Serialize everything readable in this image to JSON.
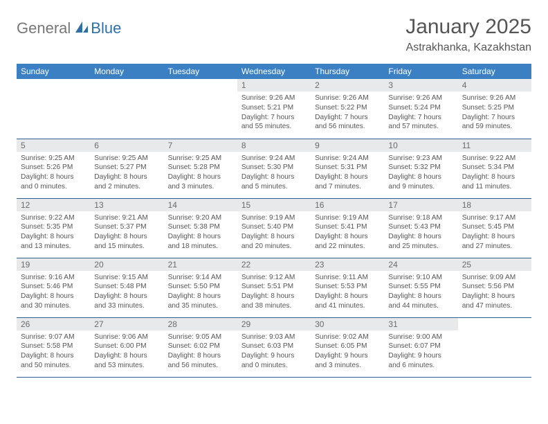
{
  "brand": {
    "part1": "General",
    "part2": "Blue"
  },
  "title": {
    "month": "January 2025",
    "location": "Astrakhanka, Kazakhstan"
  },
  "colors": {
    "header_bg": "#3a80c3",
    "header_text": "#ffffff",
    "daynum_bg": "#e7e9eb",
    "row_divider": "#2c5f90",
    "body_text": "#555555",
    "logo_gray": "#777777",
    "logo_blue": "#2f6fa8",
    "page_bg": "#ffffff"
  },
  "typography": {
    "base_font": "Arial",
    "title_size_pt": 23,
    "location_size_pt": 12,
    "cell_size_pt": 8
  },
  "weekdays": [
    "Sunday",
    "Monday",
    "Tuesday",
    "Wednesday",
    "Thursday",
    "Friday",
    "Saturday"
  ],
  "calendar": {
    "type": "table",
    "columns": 7,
    "rows": 5,
    "weeks": [
      [
        {
          "blank": true
        },
        {
          "blank": true
        },
        {
          "blank": true
        },
        {
          "num": "1",
          "sunrise": "Sunrise: 9:26 AM",
          "sunset": "Sunset: 5:21 PM",
          "day1": "Daylight: 7 hours",
          "day2": "and 55 minutes."
        },
        {
          "num": "2",
          "sunrise": "Sunrise: 9:26 AM",
          "sunset": "Sunset: 5:22 PM",
          "day1": "Daylight: 7 hours",
          "day2": "and 56 minutes."
        },
        {
          "num": "3",
          "sunrise": "Sunrise: 9:26 AM",
          "sunset": "Sunset: 5:24 PM",
          "day1": "Daylight: 7 hours",
          "day2": "and 57 minutes."
        },
        {
          "num": "4",
          "sunrise": "Sunrise: 9:26 AM",
          "sunset": "Sunset: 5:25 PM",
          "day1": "Daylight: 7 hours",
          "day2": "and 59 minutes."
        }
      ],
      [
        {
          "num": "5",
          "sunrise": "Sunrise: 9:25 AM",
          "sunset": "Sunset: 5:26 PM",
          "day1": "Daylight: 8 hours",
          "day2": "and 0 minutes."
        },
        {
          "num": "6",
          "sunrise": "Sunrise: 9:25 AM",
          "sunset": "Sunset: 5:27 PM",
          "day1": "Daylight: 8 hours",
          "day2": "and 2 minutes."
        },
        {
          "num": "7",
          "sunrise": "Sunrise: 9:25 AM",
          "sunset": "Sunset: 5:28 PM",
          "day1": "Daylight: 8 hours",
          "day2": "and 3 minutes."
        },
        {
          "num": "8",
          "sunrise": "Sunrise: 9:24 AM",
          "sunset": "Sunset: 5:30 PM",
          "day1": "Daylight: 8 hours",
          "day2": "and 5 minutes."
        },
        {
          "num": "9",
          "sunrise": "Sunrise: 9:24 AM",
          "sunset": "Sunset: 5:31 PM",
          "day1": "Daylight: 8 hours",
          "day2": "and 7 minutes."
        },
        {
          "num": "10",
          "sunrise": "Sunrise: 9:23 AM",
          "sunset": "Sunset: 5:32 PM",
          "day1": "Daylight: 8 hours",
          "day2": "and 9 minutes."
        },
        {
          "num": "11",
          "sunrise": "Sunrise: 9:22 AM",
          "sunset": "Sunset: 5:34 PM",
          "day1": "Daylight: 8 hours",
          "day2": "and 11 minutes."
        }
      ],
      [
        {
          "num": "12",
          "sunrise": "Sunrise: 9:22 AM",
          "sunset": "Sunset: 5:35 PM",
          "day1": "Daylight: 8 hours",
          "day2": "and 13 minutes."
        },
        {
          "num": "13",
          "sunrise": "Sunrise: 9:21 AM",
          "sunset": "Sunset: 5:37 PM",
          "day1": "Daylight: 8 hours",
          "day2": "and 15 minutes."
        },
        {
          "num": "14",
          "sunrise": "Sunrise: 9:20 AM",
          "sunset": "Sunset: 5:38 PM",
          "day1": "Daylight: 8 hours",
          "day2": "and 18 minutes."
        },
        {
          "num": "15",
          "sunrise": "Sunrise: 9:19 AM",
          "sunset": "Sunset: 5:40 PM",
          "day1": "Daylight: 8 hours",
          "day2": "and 20 minutes."
        },
        {
          "num": "16",
          "sunrise": "Sunrise: 9:19 AM",
          "sunset": "Sunset: 5:41 PM",
          "day1": "Daylight: 8 hours",
          "day2": "and 22 minutes."
        },
        {
          "num": "17",
          "sunrise": "Sunrise: 9:18 AM",
          "sunset": "Sunset: 5:43 PM",
          "day1": "Daylight: 8 hours",
          "day2": "and 25 minutes."
        },
        {
          "num": "18",
          "sunrise": "Sunrise: 9:17 AM",
          "sunset": "Sunset: 5:45 PM",
          "day1": "Daylight: 8 hours",
          "day2": "and 27 minutes."
        }
      ],
      [
        {
          "num": "19",
          "sunrise": "Sunrise: 9:16 AM",
          "sunset": "Sunset: 5:46 PM",
          "day1": "Daylight: 8 hours",
          "day2": "and 30 minutes."
        },
        {
          "num": "20",
          "sunrise": "Sunrise: 9:15 AM",
          "sunset": "Sunset: 5:48 PM",
          "day1": "Daylight: 8 hours",
          "day2": "and 33 minutes."
        },
        {
          "num": "21",
          "sunrise": "Sunrise: 9:14 AM",
          "sunset": "Sunset: 5:50 PM",
          "day1": "Daylight: 8 hours",
          "day2": "and 35 minutes."
        },
        {
          "num": "22",
          "sunrise": "Sunrise: 9:12 AM",
          "sunset": "Sunset: 5:51 PM",
          "day1": "Daylight: 8 hours",
          "day2": "and 38 minutes."
        },
        {
          "num": "23",
          "sunrise": "Sunrise: 9:11 AM",
          "sunset": "Sunset: 5:53 PM",
          "day1": "Daylight: 8 hours",
          "day2": "and 41 minutes."
        },
        {
          "num": "24",
          "sunrise": "Sunrise: 9:10 AM",
          "sunset": "Sunset: 5:55 PM",
          "day1": "Daylight: 8 hours",
          "day2": "and 44 minutes."
        },
        {
          "num": "25",
          "sunrise": "Sunrise: 9:09 AM",
          "sunset": "Sunset: 5:56 PM",
          "day1": "Daylight: 8 hours",
          "day2": "and 47 minutes."
        }
      ],
      [
        {
          "num": "26",
          "sunrise": "Sunrise: 9:07 AM",
          "sunset": "Sunset: 5:58 PM",
          "day1": "Daylight: 8 hours",
          "day2": "and 50 minutes."
        },
        {
          "num": "27",
          "sunrise": "Sunrise: 9:06 AM",
          "sunset": "Sunset: 6:00 PM",
          "day1": "Daylight: 8 hours",
          "day2": "and 53 minutes."
        },
        {
          "num": "28",
          "sunrise": "Sunrise: 9:05 AM",
          "sunset": "Sunset: 6:02 PM",
          "day1": "Daylight: 8 hours",
          "day2": "and 56 minutes."
        },
        {
          "num": "29",
          "sunrise": "Sunrise: 9:03 AM",
          "sunset": "Sunset: 6:03 PM",
          "day1": "Daylight: 9 hours",
          "day2": "and 0 minutes."
        },
        {
          "num": "30",
          "sunrise": "Sunrise: 9:02 AM",
          "sunset": "Sunset: 6:05 PM",
          "day1": "Daylight: 9 hours",
          "day2": "and 3 minutes."
        },
        {
          "num": "31",
          "sunrise": "Sunrise: 9:00 AM",
          "sunset": "Sunset: 6:07 PM",
          "day1": "Daylight: 9 hours",
          "day2": "and 6 minutes."
        },
        {
          "blank": true
        }
      ]
    ]
  }
}
